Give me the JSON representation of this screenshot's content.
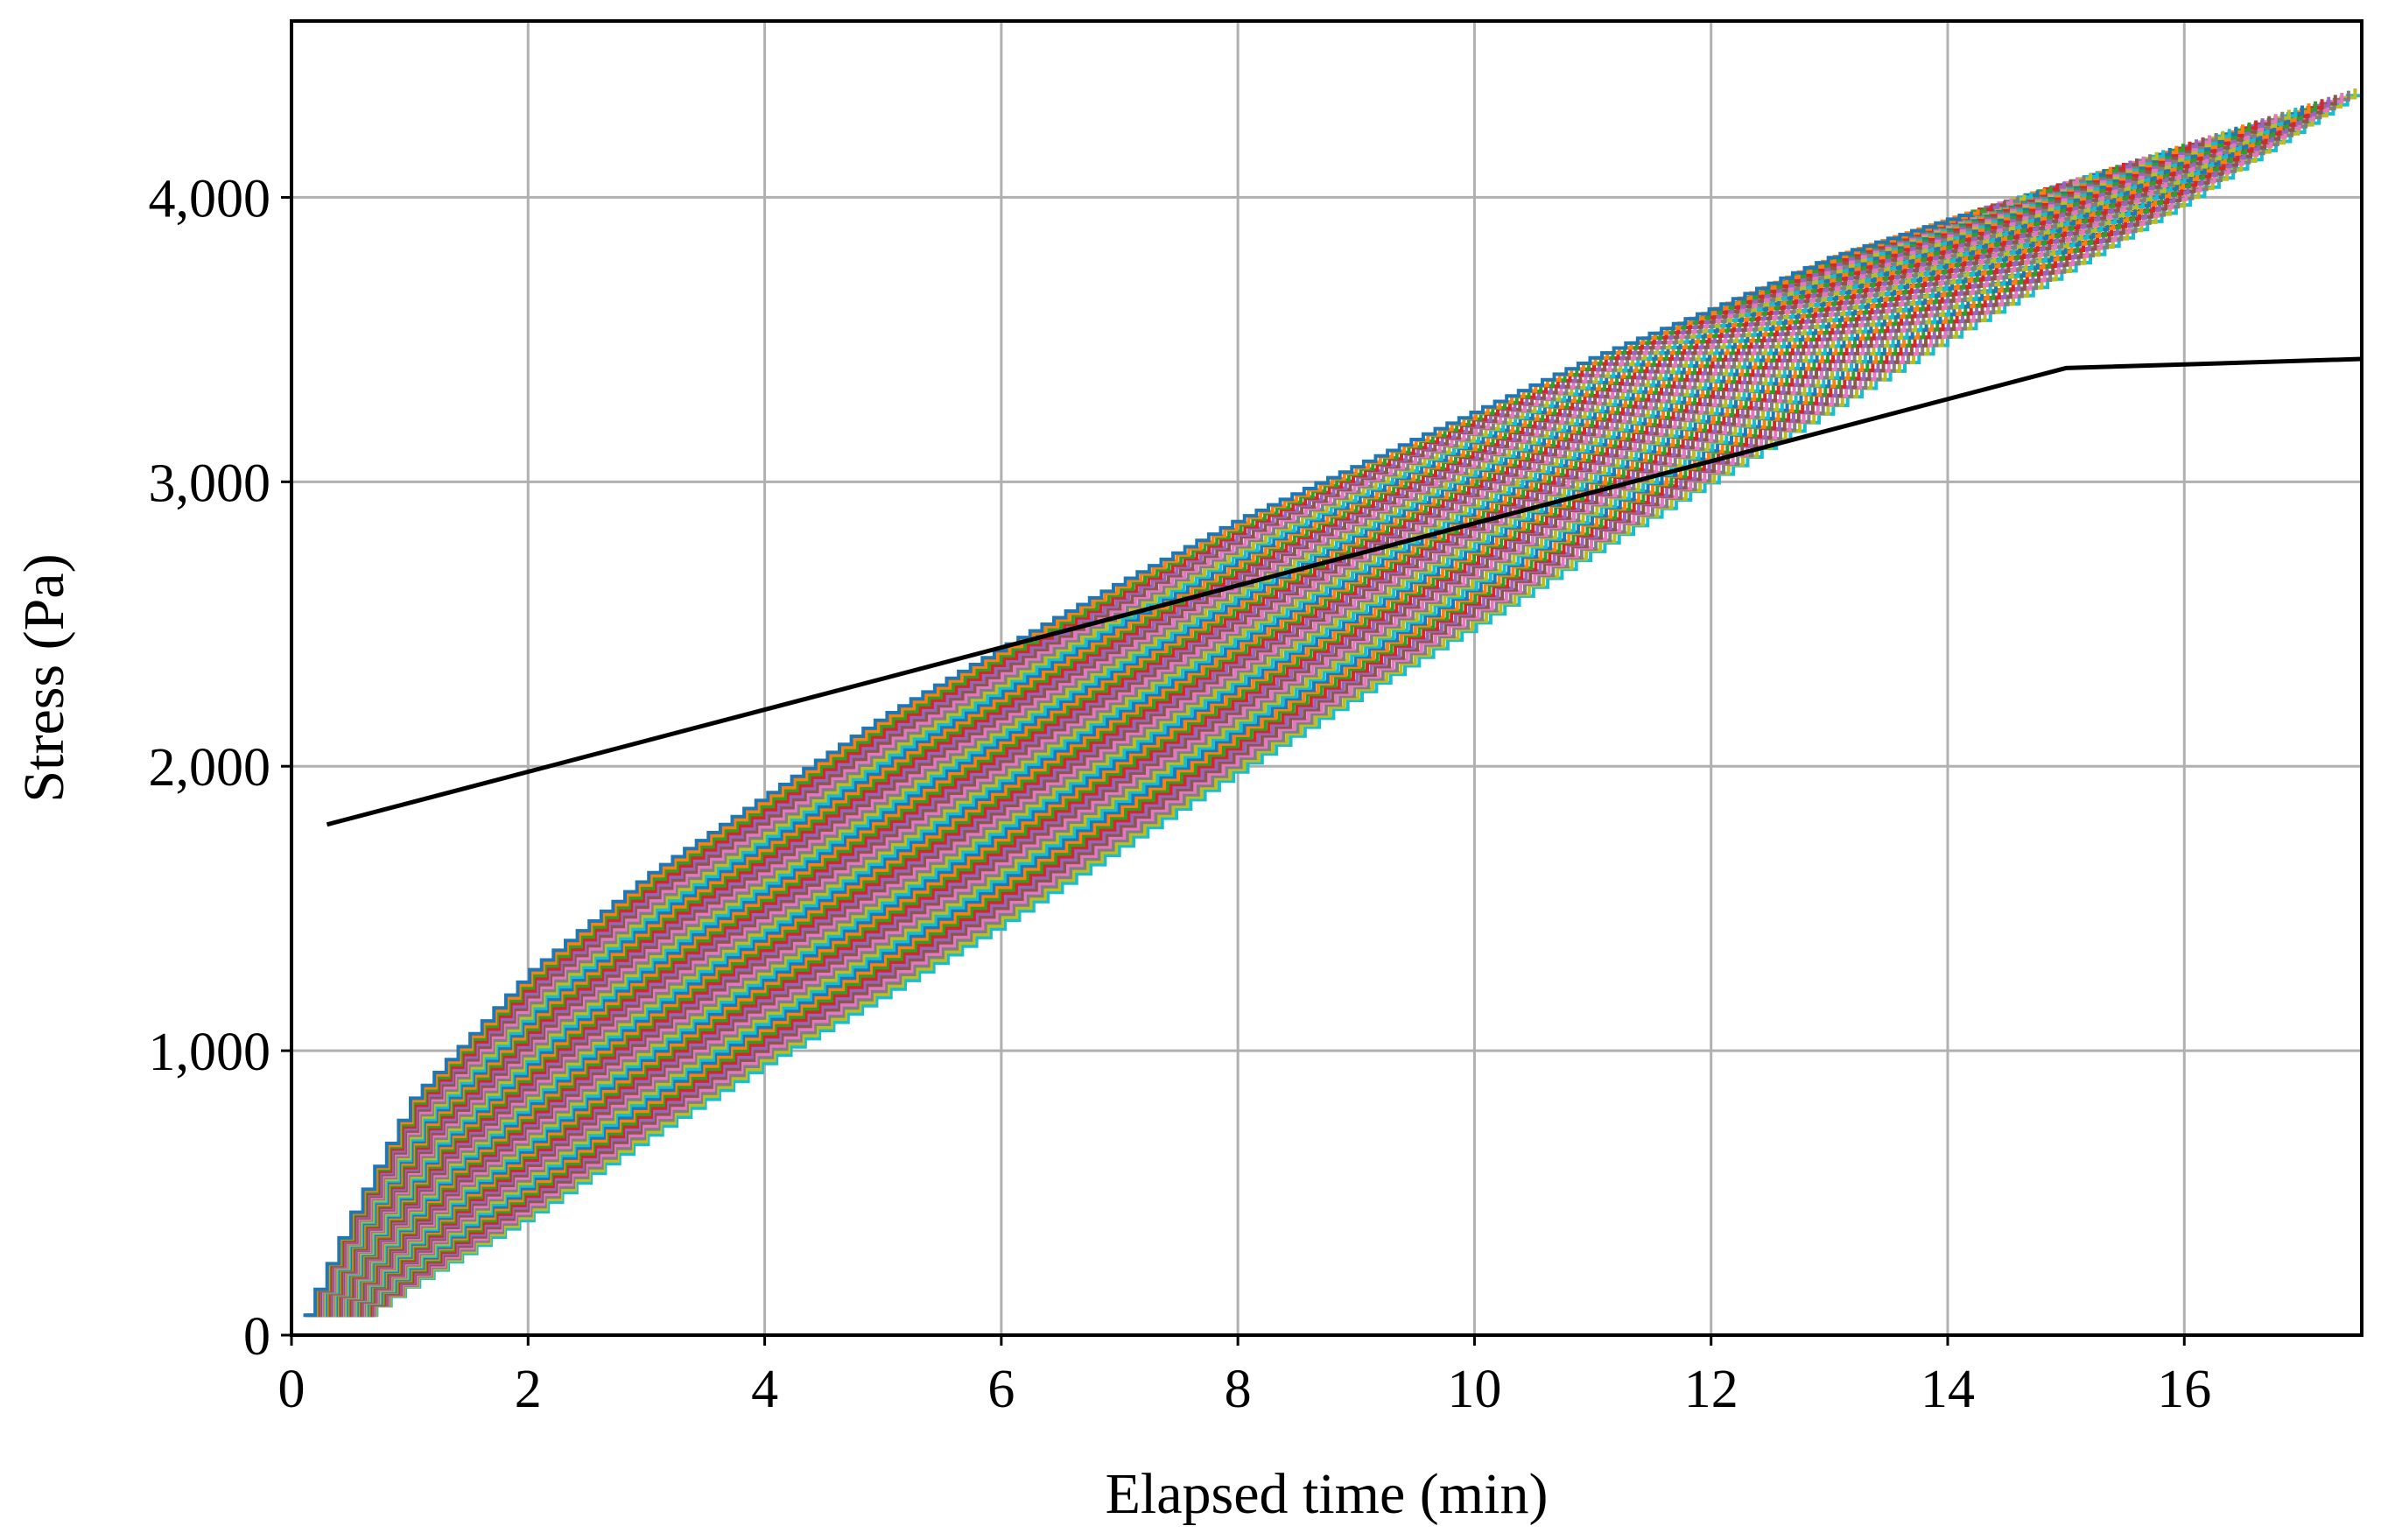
{
  "chart_data": {
    "type": "line",
    "title": "",
    "xlabel": "Elapsed time (min)",
    "ylabel": "Stress (Pa)",
    "xlim": [
      0,
      17.5
    ],
    "ylim": [
      0,
      4620
    ],
    "x_ticks": [
      0,
      2,
      4,
      6,
      8,
      10,
      12,
      14,
      16
    ],
    "x_tick_labels": [
      "0",
      "2",
      "4",
      "6",
      "8",
      "10",
      "12",
      "14",
      "16"
    ],
    "y_ticks": [
      0,
      1000,
      2000,
      3000,
      4000
    ],
    "y_tick_labels": [
      "0",
      "1,000",
      "2,000",
      "3,000",
      "4,000"
    ],
    "grid": true,
    "legend": false,
    "series_colors": [
      "#1f77b4",
      "#ff7f0e",
      "#2ca02c",
      "#d62728",
      "#9467bd",
      "#8c564b",
      "#e377c2",
      "#7f7f7f",
      "#bcbd22",
      "#17becf"
    ],
    "series": [
      {
        "color": "#000000",
        "x": [
          0.3,
          15.0,
          17.5
        ],
        "y": [
          1795,
          3400,
          3432
        ]
      }
    ],
    "family": {
      "count": 60,
      "style": "staircase",
      "start_x": [
        0.1,
        0.6
      ],
      "end_x": [
        14.2,
        17.5
      ],
      "start_y": [
        70,
        70
      ],
      "end_y": [
        3950,
        4390
      ],
      "curves": [
        {
          "x": [
            0.1,
            0.5,
            1,
            2,
            3,
            4,
            5,
            6,
            7,
            8,
            9,
            10,
            11,
            12,
            13,
            14.2
          ],
          "y": [
            70,
            430,
            830,
            1280,
            1620,
            1900,
            2180,
            2420,
            2650,
            2870,
            3060,
            3250,
            3440,
            3610,
            3790,
            3950
          ]
        },
        {
          "x": [
            0.6,
            1,
            2,
            3,
            4,
            5,
            6,
            7,
            8,
            9,
            10,
            11,
            12,
            13,
            14,
            15,
            16,
            17.5
          ],
          "y": [
            70,
            180,
            420,
            700,
            960,
            1200,
            1450,
            1720,
            1990,
            2250,
            2500,
            2760,
            3010,
            3260,
            3510,
            3750,
            3990,
            4390
          ]
        }
      ]
    }
  }
}
